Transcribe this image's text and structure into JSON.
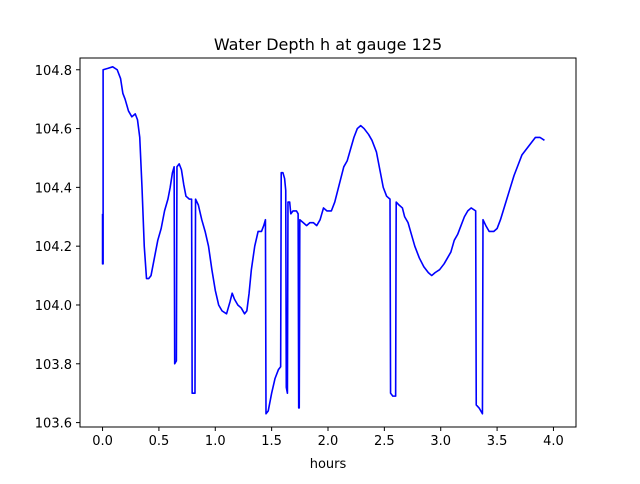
{
  "chart_data": {
    "type": "line",
    "title": "Water Depth h at gauge 125",
    "xlabel": "hours",
    "ylabel": "",
    "xlim": [
      -0.2,
      4.2
    ],
    "ylim": [
      103.585,
      104.84
    ],
    "xticks": [
      0.0,
      0.5,
      1.0,
      1.5,
      2.0,
      2.5,
      3.0,
      3.5,
      4.0
    ],
    "xtick_labels": [
      "0.0",
      "0.5",
      "1.0",
      "1.5",
      "2.0",
      "2.5",
      "3.0",
      "3.5",
      "4.0"
    ],
    "yticks": [
      103.6,
      103.8,
      104.0,
      104.2,
      104.4,
      104.6,
      104.8
    ],
    "ytick_labels": [
      "103.6",
      "103.8",
      "104.0",
      "104.2",
      "104.4",
      "104.6",
      "104.8"
    ],
    "grid": false,
    "legend": "none",
    "series": [
      {
        "color": "#0000ff",
        "points": [
          [
            0.0,
            104.31
          ],
          [
            0.0,
            104.14
          ],
          [
            0.005,
            104.14
          ],
          [
            0.005,
            104.8
          ],
          [
            0.05,
            104.805
          ],
          [
            0.09,
            104.81
          ],
          [
            0.13,
            104.8
          ],
          [
            0.16,
            104.77
          ],
          [
            0.18,
            104.72
          ],
          [
            0.2,
            104.7
          ],
          [
            0.23,
            104.66
          ],
          [
            0.26,
            104.64
          ],
          [
            0.29,
            104.65
          ],
          [
            0.31,
            104.63
          ],
          [
            0.33,
            104.57
          ],
          [
            0.35,
            104.4
          ],
          [
            0.37,
            104.2
          ],
          [
            0.39,
            104.09
          ],
          [
            0.41,
            104.09
          ],
          [
            0.43,
            104.1
          ],
          [
            0.46,
            104.16
          ],
          [
            0.49,
            104.22
          ],
          [
            0.52,
            104.26
          ],
          [
            0.55,
            104.32
          ],
          [
            0.58,
            104.36
          ],
          [
            0.6,
            104.4
          ],
          [
            0.62,
            104.45
          ],
          [
            0.635,
            104.47
          ],
          [
            0.64,
            103.8
          ],
          [
            0.655,
            103.81
          ],
          [
            0.66,
            104.47
          ],
          [
            0.68,
            104.48
          ],
          [
            0.7,
            104.46
          ],
          [
            0.72,
            104.41
          ],
          [
            0.74,
            104.37
          ],
          [
            0.77,
            104.36
          ],
          [
            0.79,
            104.36
          ],
          [
            0.795,
            103.7
          ],
          [
            0.82,
            103.7
          ],
          [
            0.825,
            104.36
          ],
          [
            0.85,
            104.34
          ],
          [
            0.88,
            104.29
          ],
          [
            0.91,
            104.25
          ],
          [
            0.94,
            104.2
          ],
          [
            0.97,
            104.12
          ],
          [
            1.0,
            104.05
          ],
          [
            1.03,
            104.0
          ],
          [
            1.06,
            103.98
          ],
          [
            1.1,
            103.97
          ],
          [
            1.13,
            104.01
          ],
          [
            1.15,
            104.04
          ],
          [
            1.17,
            104.02
          ],
          [
            1.2,
            104.0
          ],
          [
            1.23,
            103.99
          ],
          [
            1.26,
            103.97
          ],
          [
            1.28,
            103.98
          ],
          [
            1.3,
            104.04
          ],
          [
            1.32,
            104.12
          ],
          [
            1.35,
            104.2
          ],
          [
            1.38,
            104.25
          ],
          [
            1.41,
            104.25
          ],
          [
            1.43,
            104.27
          ],
          [
            1.445,
            104.29
          ],
          [
            1.45,
            103.63
          ],
          [
            1.47,
            103.64
          ],
          [
            1.5,
            103.7
          ],
          [
            1.53,
            103.75
          ],
          [
            1.56,
            103.78
          ],
          [
            1.58,
            103.79
          ],
          [
            1.585,
            104.45
          ],
          [
            1.6,
            104.45
          ],
          [
            1.615,
            104.43
          ],
          [
            1.625,
            104.39
          ],
          [
            1.63,
            103.72
          ],
          [
            1.64,
            103.7
          ],
          [
            1.645,
            104.35
          ],
          [
            1.66,
            104.35
          ],
          [
            1.67,
            104.31
          ],
          [
            1.69,
            104.32
          ],
          [
            1.72,
            104.32
          ],
          [
            1.735,
            104.31
          ],
          [
            1.74,
            103.65
          ],
          [
            1.745,
            103.65
          ],
          [
            1.75,
            104.29
          ],
          [
            1.78,
            104.28
          ],
          [
            1.81,
            104.27
          ],
          [
            1.84,
            104.28
          ],
          [
            1.87,
            104.28
          ],
          [
            1.9,
            104.27
          ],
          [
            1.93,
            104.29
          ],
          [
            1.96,
            104.33
          ],
          [
            1.99,
            104.32
          ],
          [
            2.03,
            104.32
          ],
          [
            2.06,
            104.35
          ],
          [
            2.1,
            104.41
          ],
          [
            2.14,
            104.47
          ],
          [
            2.17,
            104.49
          ],
          [
            2.2,
            104.53
          ],
          [
            2.23,
            104.57
          ],
          [
            2.26,
            104.6
          ],
          [
            2.29,
            104.61
          ],
          [
            2.32,
            104.6
          ],
          [
            2.36,
            104.58
          ],
          [
            2.39,
            104.56
          ],
          [
            2.43,
            104.52
          ],
          [
            2.46,
            104.46
          ],
          [
            2.49,
            104.4
          ],
          [
            2.52,
            104.37
          ],
          [
            2.55,
            104.36
          ],
          [
            2.555,
            103.7
          ],
          [
            2.575,
            103.69
          ],
          [
            2.6,
            103.69
          ],
          [
            2.605,
            104.35
          ],
          [
            2.63,
            104.34
          ],
          [
            2.66,
            104.33
          ],
          [
            2.68,
            104.3
          ],
          [
            2.71,
            104.28
          ],
          [
            2.74,
            104.24
          ],
          [
            2.77,
            104.2
          ],
          [
            2.81,
            104.16
          ],
          [
            2.85,
            104.13
          ],
          [
            2.89,
            104.11
          ],
          [
            2.92,
            104.1
          ],
          [
            2.95,
            104.11
          ],
          [
            2.99,
            104.12
          ],
          [
            3.03,
            104.14
          ],
          [
            3.06,
            104.16
          ],
          [
            3.09,
            104.18
          ],
          [
            3.12,
            104.22
          ],
          [
            3.15,
            104.24
          ],
          [
            3.18,
            104.27
          ],
          [
            3.21,
            104.3
          ],
          [
            3.24,
            104.32
          ],
          [
            3.27,
            104.33
          ],
          [
            3.31,
            104.32
          ],
          [
            3.315,
            103.66
          ],
          [
            3.34,
            103.65
          ],
          [
            3.37,
            103.63
          ],
          [
            3.375,
            104.29
          ],
          [
            3.4,
            104.27
          ],
          [
            3.43,
            104.25
          ],
          [
            3.47,
            104.25
          ],
          [
            3.5,
            104.26
          ],
          [
            3.53,
            104.29
          ],
          [
            3.57,
            104.34
          ],
          [
            3.61,
            104.39
          ],
          [
            3.65,
            104.44
          ],
          [
            3.69,
            104.48
          ],
          [
            3.72,
            104.51
          ],
          [
            3.76,
            104.53
          ],
          [
            3.8,
            104.55
          ],
          [
            3.84,
            104.57
          ],
          [
            3.88,
            104.57
          ],
          [
            3.92,
            104.56
          ]
        ]
      }
    ]
  }
}
